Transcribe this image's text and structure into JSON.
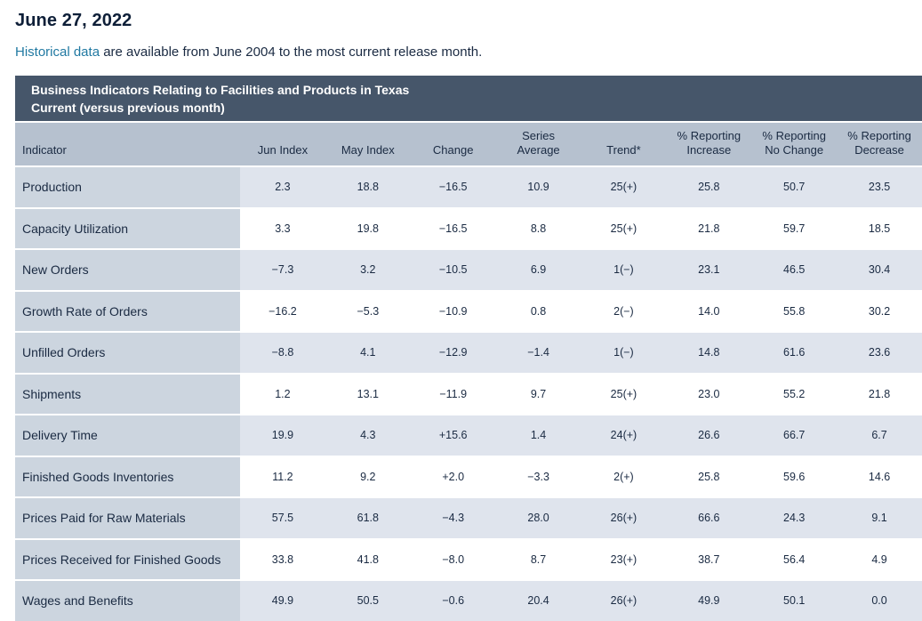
{
  "page": {
    "title": "June 27, 2022",
    "intro": {
      "link_text": "Historical data",
      "text_after_link": " are available from June 2004 to the most current release month."
    }
  },
  "table": {
    "header": {
      "line1": "Business Indicators Relating to Facilities and Products in Texas",
      "line2": "Current (versus previous month)"
    },
    "columns": [
      "Indicator",
      "Jun Index",
      "May Index",
      "Change",
      "Series\nAverage",
      "Trend*",
      "% Reporting\nIncrease",
      "% Reporting\nNo Change",
      "% Reporting\nDecrease"
    ],
    "rows": [
      {
        "indicator": "Production",
        "values": [
          "2.3",
          "18.8",
          "−16.5",
          "10.9",
          "25(+)",
          "25.8",
          "50.7",
          "23.5"
        ]
      },
      {
        "indicator": "Capacity Utilization",
        "values": [
          "3.3",
          "19.8",
          "−16.5",
          "8.8",
          "25(+)",
          "21.8",
          "59.7",
          "18.5"
        ]
      },
      {
        "indicator": "New Orders",
        "values": [
          "−7.3",
          "3.2",
          "−10.5",
          "6.9",
          "1(−)",
          "23.1",
          "46.5",
          "30.4"
        ]
      },
      {
        "indicator": "Growth Rate of Orders",
        "values": [
          "−16.2",
          "−5.3",
          "−10.9",
          "0.8",
          "2(−)",
          "14.0",
          "55.8",
          "30.2"
        ]
      },
      {
        "indicator": "Unfilled Orders",
        "values": [
          "−8.8",
          "4.1",
          "−12.9",
          "−1.4",
          "1(−)",
          "14.8",
          "61.6",
          "23.6"
        ]
      },
      {
        "indicator": "Shipments",
        "values": [
          "1.2",
          "13.1",
          "−11.9",
          "9.7",
          "25(+)",
          "23.0",
          "55.2",
          "21.8"
        ]
      },
      {
        "indicator": "Delivery Time",
        "values": [
          "19.9",
          "4.3",
          "+15.6",
          "1.4",
          "24(+)",
          "26.6",
          "66.7",
          "6.7"
        ]
      },
      {
        "indicator": "Finished Goods Inventories",
        "values": [
          "11.2",
          "9.2",
          "+2.0",
          "−3.3",
          "2(+)",
          "25.8",
          "59.6",
          "14.6"
        ]
      },
      {
        "indicator": "Prices Paid for Raw Materials",
        "values": [
          "57.5",
          "61.8",
          "−4.3",
          "28.0",
          "26(+)",
          "66.6",
          "24.3",
          "9.1"
        ]
      },
      {
        "indicator": "Prices Received for Finished Goods",
        "values": [
          "33.8",
          "41.8",
          "−8.0",
          "8.7",
          "23(+)",
          "38.7",
          "56.4",
          "4.9"
        ]
      },
      {
        "indicator": "Wages and Benefits",
        "values": [
          "49.9",
          "50.5",
          "−0.6",
          "20.4",
          "26(+)",
          "49.9",
          "50.1",
          "0.0"
        ]
      }
    ]
  },
  "colors": {
    "header_bar": "#46566a",
    "column_header_bg": "#b6c1cf",
    "indicator_col_bg": "#ccd5df",
    "band_row_bg": "#dfe4ed",
    "white_row_bg": "#ffffff",
    "link": "#2179a2",
    "text": "#1a2a42"
  }
}
